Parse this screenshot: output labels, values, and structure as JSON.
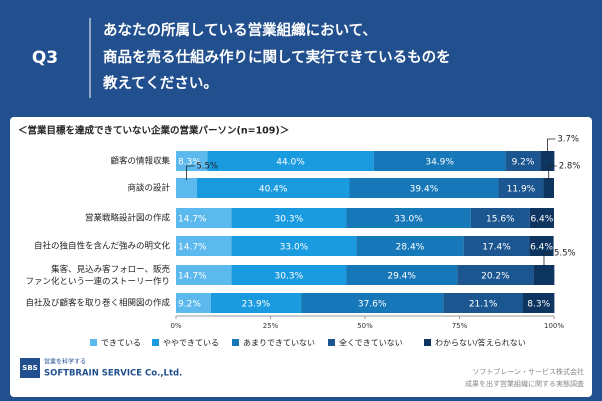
{
  "header": {
    "q": "Q3",
    "title": [
      "あなたの所属している営業組織において、",
      "商品を売る仕組み作りに関して実行できているものを",
      "教えてください。"
    ]
  },
  "chart_data": {
    "type": "stacked-bar-horizontal",
    "subtitle": "＜営業目標を達成できていない企業の営業パーソン(n=109)＞",
    "categories": [
      "顧客の情報収集",
      "商談の設計",
      "営業戦略設計図の作成",
      "自社の独自性を含んだ強みの明文化",
      "集客、見込み客フォロー、販売\nファン化という一連のストーリー作り",
      "自社及び顧客を取り巻く相関図の作成"
    ],
    "series": [
      {
        "name": "できている",
        "color": "#5cb9ee",
        "values": [
          8.3,
          5.5,
          14.7,
          14.7,
          14.7,
          9.2
        ],
        "value_labels": [
          "8.3%",
          "5.5%",
          "14.7%",
          "14.7%",
          "14.7%",
          "9.2%"
        ]
      },
      {
        "name": "ややできている",
        "color": "#1a9be0",
        "values": [
          44.0,
          40.4,
          30.3,
          33.0,
          30.3,
          23.9
        ],
        "value_labels": [
          "44.0%",
          "40.4%",
          "30.3%",
          "33.0%",
          "30.3%",
          "23.9%"
        ]
      },
      {
        "name": "あまりできていない",
        "color": "#1677b9",
        "values": [
          34.9,
          39.4,
          33.0,
          28.4,
          29.4,
          37.6
        ],
        "value_labels": [
          "34.9%",
          "39.4%",
          "33.0%",
          "28.4%",
          "29.4%",
          "37.6%"
        ]
      },
      {
        "name": "全くできていない",
        "color": "#1b5690",
        "values": [
          9.2,
          11.9,
          15.6,
          17.4,
          20.2,
          21.1
        ],
        "value_labels": [
          "9.2%",
          "11.9%",
          "15.6%",
          "17.4%",
          "20.2%",
          "21.1%"
        ]
      },
      {
        "name": "わからない/答えられない",
        "color": "#0e3560",
        "values": [
          3.7,
          2.8,
          6.4,
          6.4,
          5.5,
          8.3
        ],
        "value_labels": [
          "3.7%",
          "2.8%",
          "6.4%",
          "6.4%",
          "5.5%",
          "8.3%"
        ]
      }
    ],
    "xlim": [
      0,
      100
    ],
    "xticks": [
      {
        "value": 0,
        "label": "0%"
      },
      {
        "value": 25,
        "label": "25%"
      },
      {
        "value": 50,
        "label": "50%"
      },
      {
        "value": 75,
        "label": "75%"
      },
      {
        "value": 100,
        "label": "100%"
      }
    ],
    "legend": "bottom"
  },
  "footer": {
    "logo_mark": "SBS",
    "logo_tagline": "営業を科学する",
    "logo_name": "SOFTBRAIN SERVICE Co.,Ltd.",
    "company": "ソフトブレーン・サービス株式会社",
    "survey": "成果を出す営業組織に関する実態調査"
  }
}
